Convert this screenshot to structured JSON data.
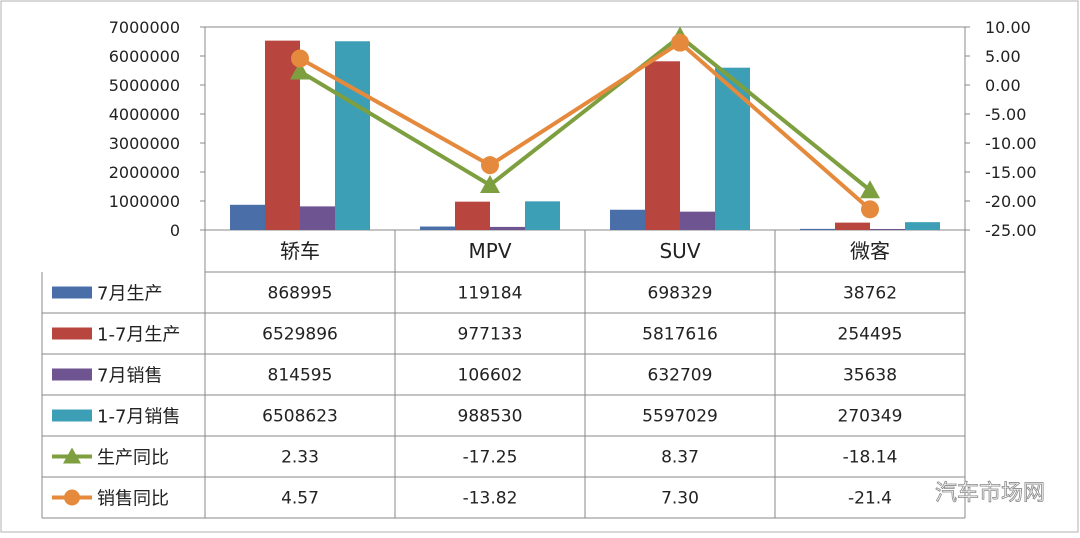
{
  "chart_data": {
    "type": "bar",
    "categories": [
      "轿车",
      "MPV",
      "SUV",
      "微客"
    ],
    "series": [
      {
        "name": "7月生产",
        "kind": "bar",
        "color": "#4a6fa8",
        "values": [
          868995,
          119184,
          698329,
          38762
        ]
      },
      {
        "name": "1-7月生产",
        "kind": "bar",
        "color": "#b8463f",
        "values": [
          6529896,
          977133,
          5817616,
          254495
        ]
      },
      {
        "name": "7月销售",
        "kind": "bar",
        "color": "#6e5592",
        "values": [
          814595,
          106602,
          632709,
          35638
        ]
      },
      {
        "name": "1-7月销售",
        "kind": "bar",
        "color": "#3d9fb5",
        "values": [
          6508623,
          988530,
          5597029,
          270349
        ]
      },
      {
        "name": "生产同比",
        "kind": "line",
        "axis": "right",
        "marker": "triangle",
        "color": "#7e9f3f",
        "values": [
          2.33,
          -17.25,
          8.37,
          -18.14
        ]
      },
      {
        "name": "销售同比",
        "kind": "line",
        "axis": "right",
        "marker": "circle",
        "color": "#e58a3c",
        "values": [
          4.57,
          -13.82,
          7.3,
          -21.44
        ]
      }
    ],
    "table_values": [
      [
        "868995",
        "119184",
        "698329",
        "38762"
      ],
      [
        "6529896",
        "977133",
        "5817616",
        "254495"
      ],
      [
        "814595",
        "106602",
        "632709",
        "35638"
      ],
      [
        "6508623",
        "988530",
        "5597029",
        "270349"
      ],
      [
        "2.33",
        "-17.25",
        "8.37",
        "-18.14"
      ],
      [
        "4.57",
        "-13.82",
        "7.30",
        "-21.4"
      ]
    ],
    "y_left": {
      "ylim": [
        0,
        7000000
      ],
      "ticks": [
        "0",
        "1000000",
        "2000000",
        "3000000",
        "4000000",
        "5000000",
        "6000000",
        "7000000"
      ]
    },
    "y_right": {
      "ylim": [
        -25,
        10
      ],
      "ticks": [
        "-25.00",
        "-20.00",
        "-15.00",
        "-10.00",
        "-5.00",
        "0.00",
        "5.00",
        "10.00"
      ]
    },
    "grid": false,
    "legend": "data-table"
  },
  "watermark": "汽车市场网"
}
